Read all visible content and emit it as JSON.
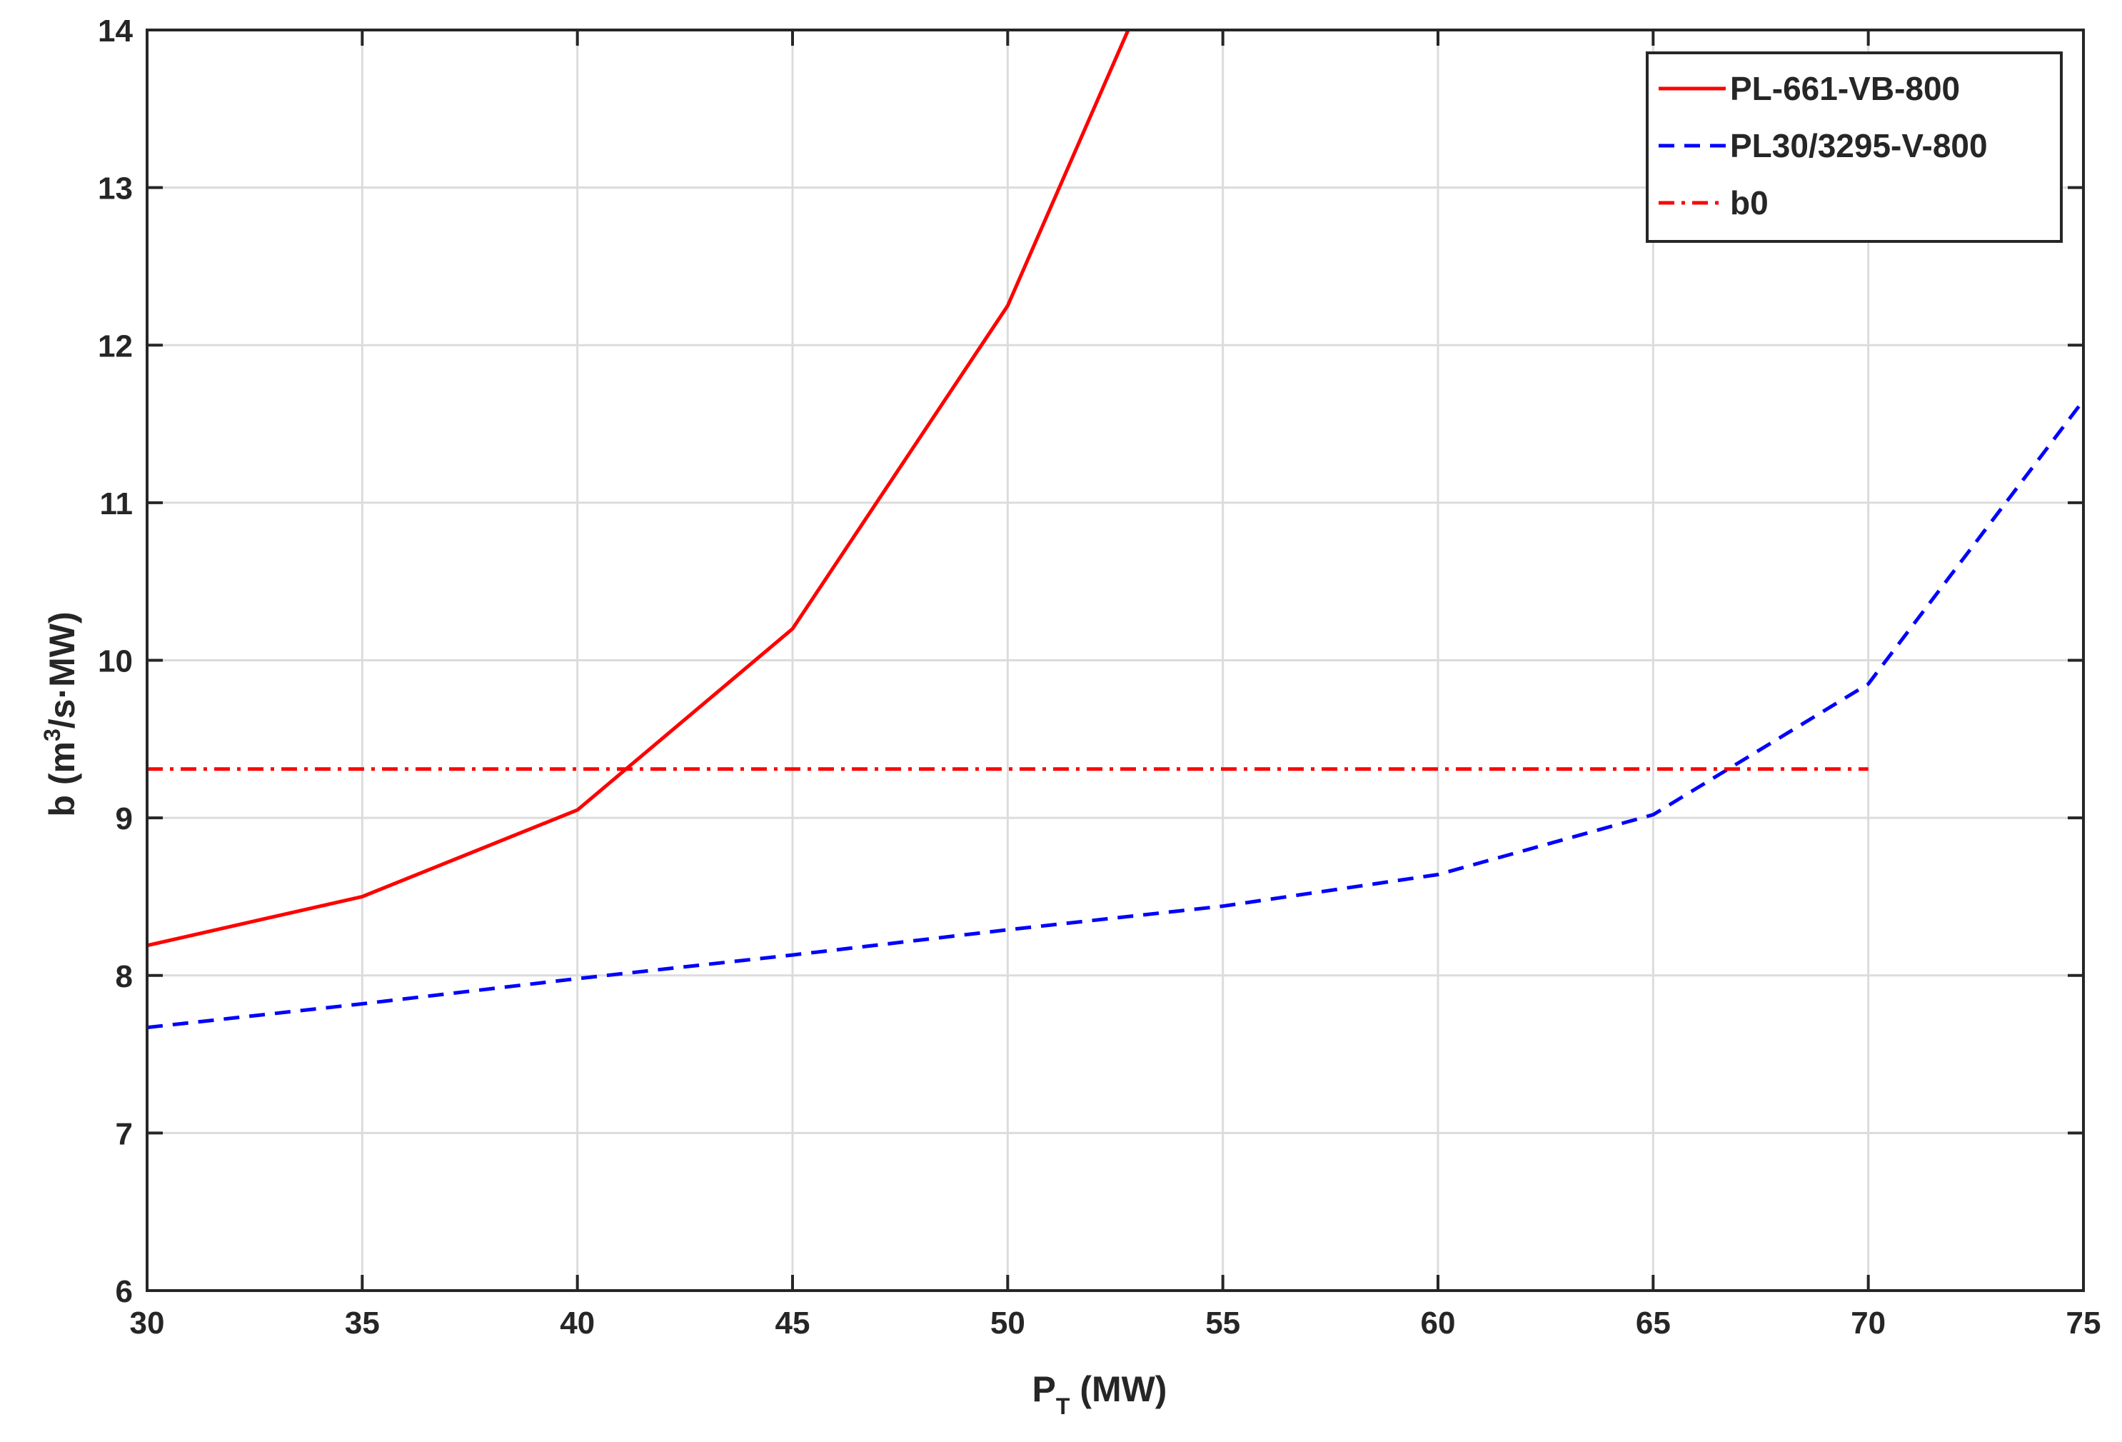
{
  "chart_data": {
    "type": "line",
    "title": "",
    "xlabel": {
      "main": "P",
      "sub": "T",
      "rest": " (MW)"
    },
    "ylabel": {
      "prefix": "b (m",
      "sup": "3",
      "suffix": "/s·MW)"
    },
    "xlim": [
      30,
      75
    ],
    "ylim": [
      6,
      14
    ],
    "xticks": [
      30,
      35,
      40,
      45,
      50,
      55,
      60,
      65,
      70,
      75
    ],
    "yticks": [
      6,
      7,
      8,
      9,
      10,
      11,
      12,
      13,
      14
    ],
    "grid": true,
    "legend_position": "top-right",
    "series": [
      {
        "name": "PL-661-VB-800",
        "color": "#ff0000",
        "style": "solid",
        "x": [
          30,
          35,
          40,
          45,
          50,
          52.8
        ],
        "y": [
          8.19,
          8.5,
          9.05,
          10.2,
          12.25,
          14.0
        ]
      },
      {
        "name": "PL30/3295-V-800",
        "color": "#0000ff",
        "style": "dashed",
        "x": [
          30,
          35,
          40,
          45,
          50,
          55,
          60,
          65,
          70,
          75
        ],
        "y": [
          7.67,
          7.82,
          7.98,
          8.13,
          8.29,
          8.44,
          8.64,
          9.02,
          9.85,
          11.65
        ]
      },
      {
        "name": "b0",
        "color": "#ff0000",
        "style": "dashdot",
        "x": [
          30,
          70
        ],
        "y": [
          9.31,
          9.31
        ]
      }
    ]
  }
}
